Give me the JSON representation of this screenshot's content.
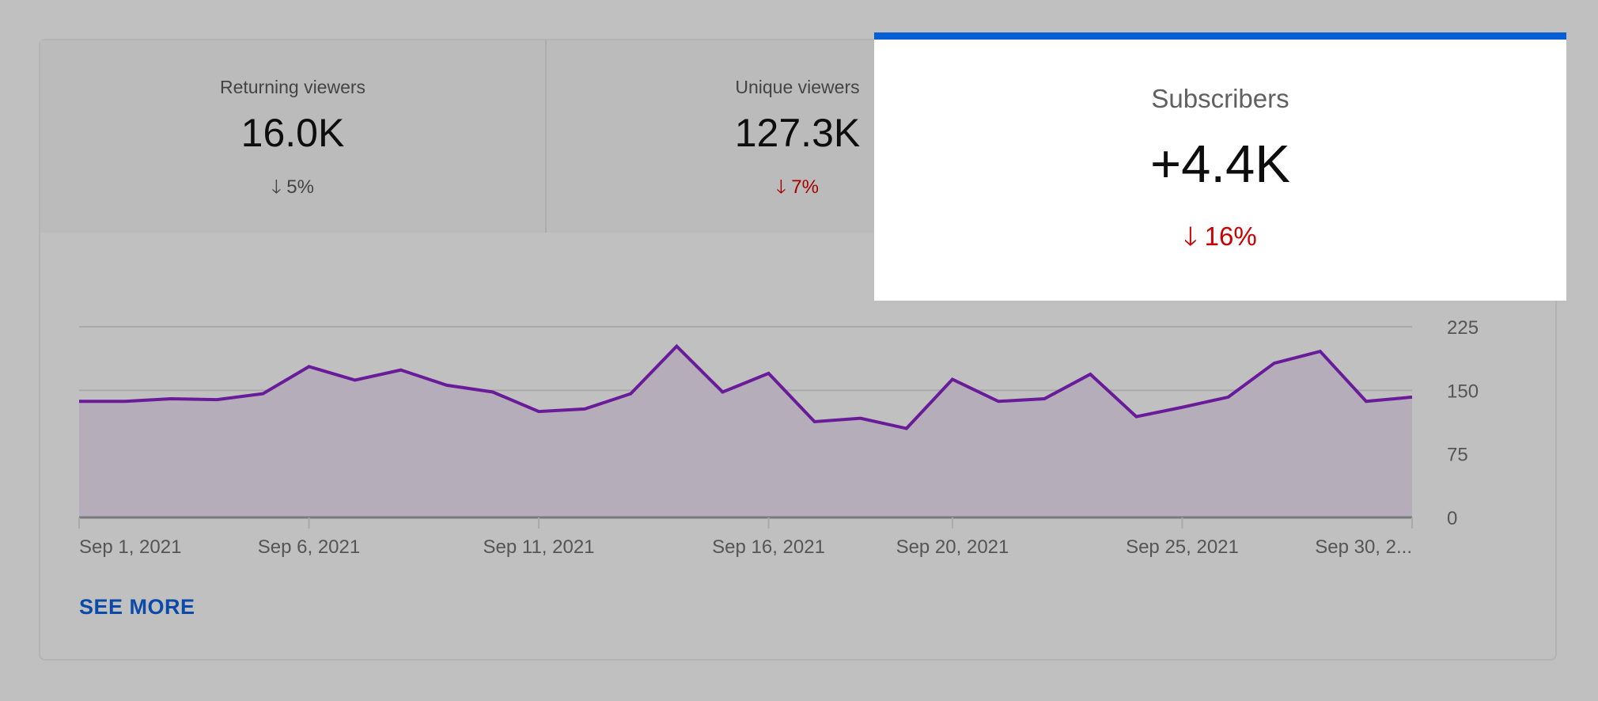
{
  "metrics": [
    {
      "label": "Returning viewers",
      "value": "16.0K",
      "delta": "5%",
      "delta_color": "#444444",
      "arrow": "arrow-down"
    },
    {
      "label": "Unique viewers",
      "value": "127.3K",
      "delta": "7%",
      "delta_color": "#a50000",
      "arrow": "arrow-down"
    }
  ],
  "selected_metric": {
    "label": "Subscribers",
    "value": "+4.4K",
    "delta": "16%",
    "delta_color": "#cc0000",
    "accent": "#065fd4",
    "arrow": "arrow-down"
  },
  "see_more": "SEE MORE",
  "chart_data": {
    "type": "area",
    "x": [
      "Sep 1",
      "Sep 2",
      "Sep 3",
      "Sep 4",
      "Sep 5",
      "Sep 6",
      "Sep 7",
      "Sep 8",
      "Sep 9",
      "Sep 10",
      "Sep 11",
      "Sep 12",
      "Sep 13",
      "Sep 14",
      "Sep 15",
      "Sep 16",
      "Sep 17",
      "Sep 18",
      "Sep 19",
      "Sep 20",
      "Sep 21",
      "Sep 22",
      "Sep 23",
      "Sep 24",
      "Sep 25",
      "Sep 26",
      "Sep 27",
      "Sep 28",
      "Sep 29",
      "Sep 30"
    ],
    "values": [
      137,
      137,
      140,
      139,
      146,
      178,
      162,
      174,
      156,
      148,
      125,
      128,
      146,
      202,
      148,
      170,
      113,
      117,
      105,
      163,
      137,
      140,
      169,
      119,
      130,
      142,
      182,
      196,
      137,
      142
    ],
    "x_tick_labels": [
      "Sep 1, 2021",
      "Sep 6, 2021",
      "Sep 11, 2021",
      "Sep 16, 2021",
      "Sep 20, 2021",
      "Sep 25, 2021",
      "Sep 30, 2..."
    ],
    "x_tick_days": [
      1,
      6,
      11,
      16,
      20,
      25,
      30
    ],
    "y_ticks": [
      "225",
      "150",
      "75",
      "0"
    ],
    "ylim": [
      0,
      225
    ],
    "grid": true,
    "y_axis_side": "right",
    "line_color": "#6a1b9a",
    "fill_color": "#b5adb9"
  }
}
